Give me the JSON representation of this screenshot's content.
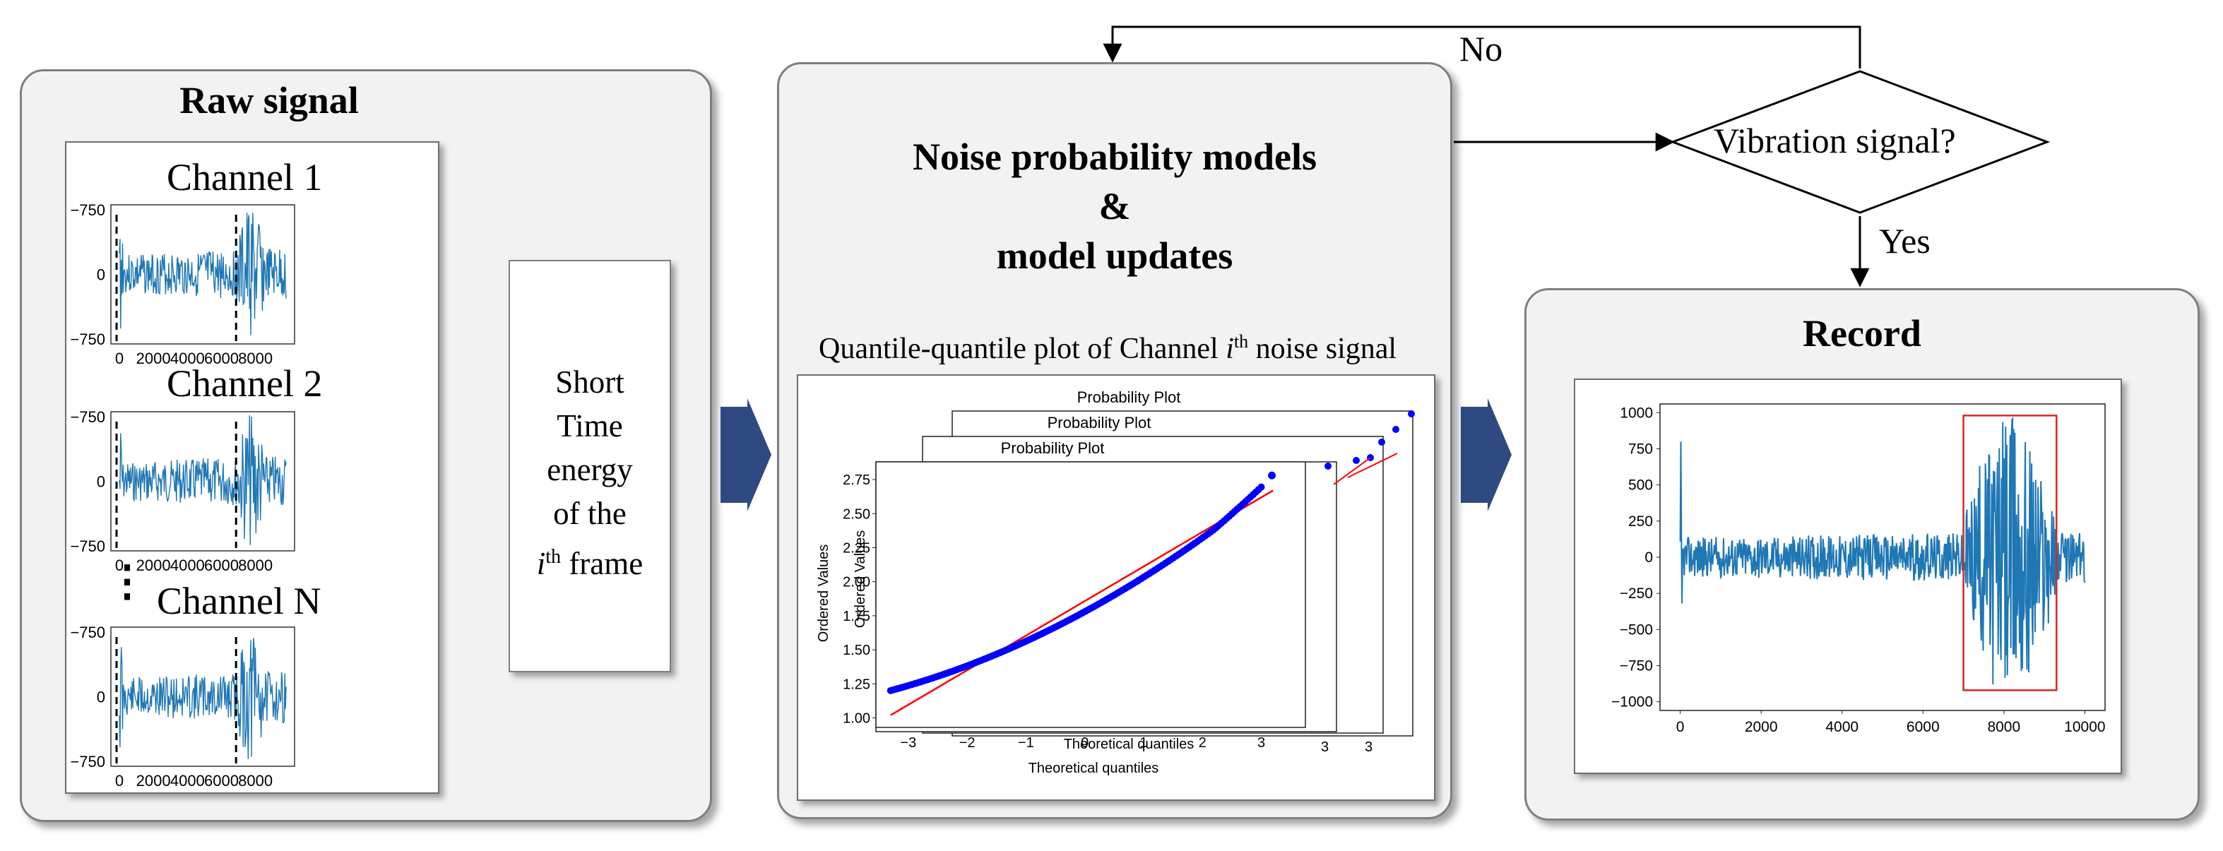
{
  "raw_panel": {
    "title": "Raw signal",
    "channels": [
      "Channel 1",
      "Channel 2",
      "Channel N"
    ],
    "mini_y_ticks": [
      "−750",
      "0",
      "−750"
    ],
    "mini_x_ticks": [
      "0",
      "2000",
      "4000",
      "6000",
      "8000"
    ],
    "ellipsis": "⋮"
  },
  "energy_box": {
    "line1": "Short",
    "line2": "Time",
    "line3": "energy",
    "line4": "of the",
    "line5_var": "i",
    "line5_sup": "th",
    "line5_rest": " frame"
  },
  "noise_panel": {
    "title_line1": "Noise probability models",
    "title_line2": "&",
    "title_line3": "model updates",
    "qq_caption_pre": "Quantile-quantile  plot  of  Channel  ",
    "qq_caption_var": "i",
    "qq_caption_sup": "th",
    "qq_caption_post": " noise signal",
    "plot_titles": [
      "Probability Plot",
      "Probability Plot",
      "Probability Plot"
    ],
    "xlabel": "Theoretical quantiles",
    "ylabel": "Ordered Values",
    "y_ticks": [
      "2.75",
      "2.50",
      "2.25",
      "2.00",
      "1.75",
      "1.50",
      "1.25",
      "1.00"
    ],
    "x_ticks": [
      "−3",
      "−2",
      "−1",
      "0",
      "1",
      "2",
      "3"
    ],
    "back_tick": "3"
  },
  "decision": {
    "question": "Vibration signal?",
    "no_label": "No",
    "yes_label": "Yes"
  },
  "record_panel": {
    "title": "Record",
    "y_ticks": [
      "1000",
      "750",
      "500",
      "250",
      "0",
      "−250",
      "−500",
      "−750",
      "−1000"
    ],
    "x_ticks": [
      "0",
      "2000",
      "4000",
      "6000",
      "8000",
      "10000"
    ]
  },
  "colors": {
    "signal": "#1f77b4",
    "qq_points": "#0000ff",
    "qq_line": "#ff0000",
    "highlight": "#d62728",
    "chevron": "#2f4a80"
  }
}
